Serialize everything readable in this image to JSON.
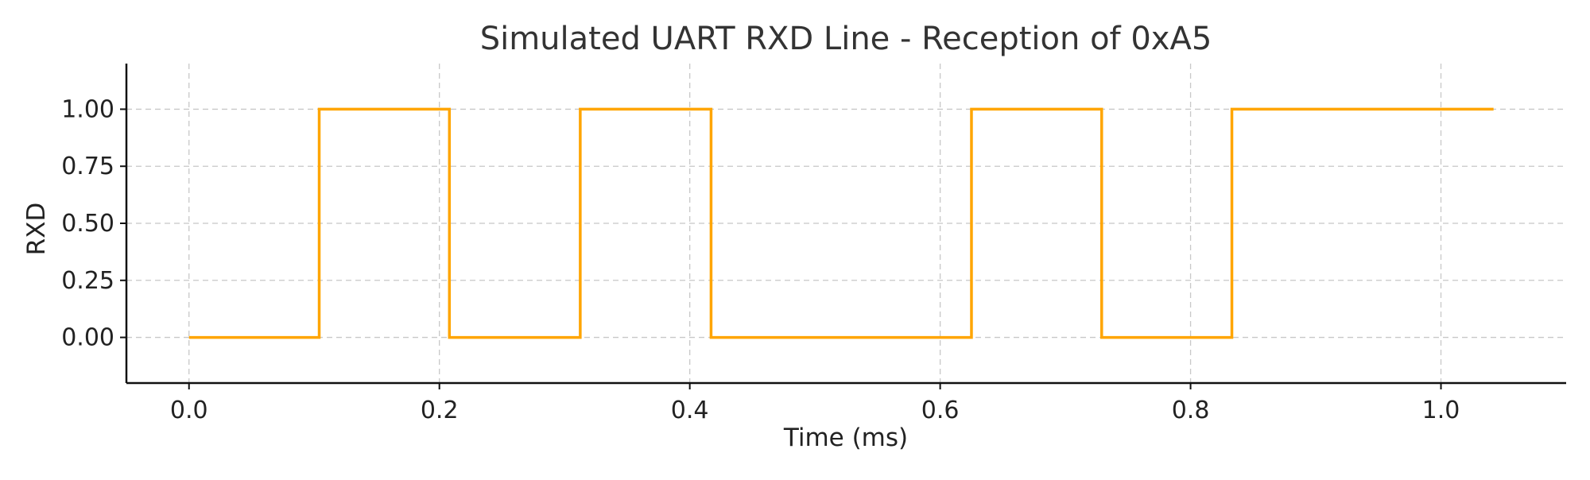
{
  "chart_data": {
    "type": "line",
    "title": "Simulated UART RXD Line - Reception of 0xA5",
    "xlabel": "Time (ms)",
    "ylabel": "RXD",
    "xlim": [
      -0.05,
      1.1
    ],
    "ylim": [
      -0.2,
      1.2
    ],
    "grid": true,
    "x_ticks": [
      0.0,
      0.2,
      0.4,
      0.6,
      0.8,
      1.0
    ],
    "x_tick_labels": [
      "0.0",
      "0.2",
      "0.4",
      "0.6",
      "0.8",
      "1.0"
    ],
    "y_ticks": [
      0.0,
      0.25,
      0.5,
      0.75,
      1.0
    ],
    "y_tick_labels": [
      "0.00",
      "0.25",
      "0.50",
      "0.75",
      "1.00"
    ],
    "series": [
      {
        "name": "RXD",
        "color": "#FFA500",
        "step": "post",
        "x": [
          0.0,
          0.104,
          0.208,
          0.3125,
          0.417,
          0.521,
          0.625,
          0.729,
          0.833,
          0.9375,
          1.042
        ],
        "y": [
          0,
          1,
          0,
          1,
          0,
          0,
          1,
          0,
          1,
          1,
          1
        ]
      }
    ]
  }
}
